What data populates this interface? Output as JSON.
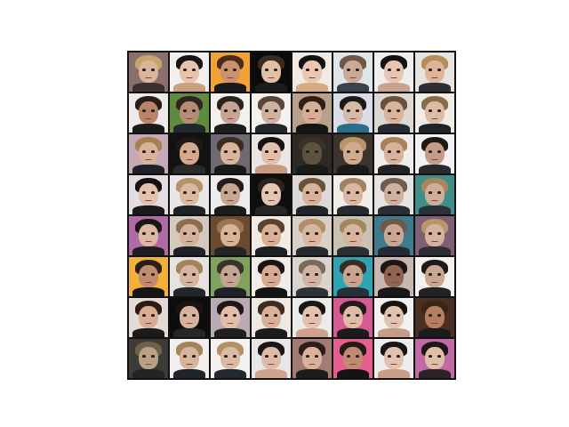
{
  "figure": {
    "rows": 8,
    "cols": 8,
    "tiles": [
      {
        "bg": "#8a6f6a",
        "hair": "#c7a46b",
        "skin": "#d9b59a",
        "cloth": "#3b2f2f"
      },
      {
        "bg": "#f2f0ee",
        "hair": "#1b1414",
        "skin": "#e7c3ab",
        "cloth": "#caa07f"
      },
      {
        "bg": "#f0a334",
        "hair": "#4a2c1e",
        "skin": "#c9926f",
        "cloth": "#1a1a1a"
      },
      {
        "bg": "#0b0b0b",
        "hair": "#3a2b1f",
        "skin": "#e0c1a8",
        "cloth": "#1c1c1c"
      },
      {
        "bg": "#f1e9e4",
        "hair": "#131010",
        "skin": "#e9c7b0",
        "cloth": "#d7a985"
      },
      {
        "bg": "#dfe6ea",
        "hair": "#6d5745",
        "skin": "#c9aa95",
        "cloth": "#39414a"
      },
      {
        "bg": "#eeeeee",
        "hair": "#151212",
        "skin": "#e6c6b2",
        "cloth": "#c8a28e"
      },
      {
        "bg": "#e7e3df",
        "hair": "#b68d58",
        "skin": "#ddb59b",
        "cloth": "#2e2e36"
      },
      {
        "bg": "#efeaea",
        "hair": "#2a1d17",
        "skin": "#b98468",
        "cloth": "#1b1b1b"
      },
      {
        "bg": "#5f8b3f",
        "hair": "#2f2520",
        "skin": "#b48d74",
        "cloth": "#22272e"
      },
      {
        "bg": "#f3f1ee",
        "hair": "#2b231e",
        "skin": "#c7a493",
        "cloth": "#1d1d1d"
      },
      {
        "bg": "#f4f2f0",
        "hair": "#5a4638",
        "skin": "#cdb1a1",
        "cloth": "#21262b"
      },
      {
        "bg": "#b9a08c",
        "hair": "#2e1f18",
        "skin": "#d6ae93",
        "cloth": "#151515"
      },
      {
        "bg": "#d9dde8",
        "hair": "#1e1a19",
        "skin": "#d6b9a6",
        "cloth": "#2a6f8a"
      },
      {
        "bg": "#dcd7d2",
        "hair": "#6b5137",
        "skin": "#d8b49c",
        "cloth": "#262b33"
      },
      {
        "bg": "#f0ede7",
        "hair": "#8a6b4c",
        "skin": "#dbbca5",
        "cloth": "#1f242b"
      },
      {
        "bg": "#c6a8b7",
        "hair": "#a6804f",
        "skin": "#d8b29a",
        "cloth": "#1d2128"
      },
      {
        "bg": "#121212",
        "hair": "#211915",
        "skin": "#d4a98d",
        "cloth": "#2a2a2a"
      },
      {
        "bg": "#6e6a74",
        "hair": "#3b2b22",
        "skin": "#d9b59d",
        "cloth": "#191919"
      },
      {
        "bg": "#e9e5e2",
        "hair": "#161212",
        "skin": "#e1c0ab",
        "cloth": "#c79a80"
      },
      {
        "bg": "#2c2a22",
        "hair": "#3a3325",
        "skin": "#5c5240",
        "cloth": "#1b1a16"
      },
      {
        "bg": "#3c352d",
        "hair": "#b89467",
        "skin": "#d0ab8f",
        "cloth": "#1a1a1a"
      },
      {
        "bg": "#f0ecea",
        "hair": "#a8835a",
        "skin": "#d7b39b",
        "cloth": "#222225"
      },
      {
        "bg": "#f3f1f1",
        "hair": "#1f1a18",
        "skin": "#c49d89",
        "cloth": "#2a2a2e"
      },
      {
        "bg": "#e1dde1",
        "hair": "#141112",
        "skin": "#e3c1ad",
        "cloth": "#1a1a1a"
      },
      {
        "bg": "#e9e7e5",
        "hair": "#b49466",
        "skin": "#dbb8a0",
        "cloth": "#1d2229"
      },
      {
        "bg": "#ececef",
        "hair": "#231c1a",
        "skin": "#c7a590",
        "cloth": "#1c1c1c"
      },
      {
        "bg": "#0e0e0e",
        "hair": "#2c221c",
        "skin": "#e3c6b2",
        "cloth": "#262626"
      },
      {
        "bg": "#dcd9d7",
        "hair": "#6b5138",
        "skin": "#d7b39a",
        "cloth": "#20252c"
      },
      {
        "bg": "#f1ede8",
        "hair": "#a3835f",
        "skin": "#d9b7a1",
        "cloth": "#252a30"
      },
      {
        "bg": "#e5e3e0",
        "hair": "#6f5c4e",
        "skin": "#ccb0a0",
        "cloth": "#2a2e34"
      },
      {
        "bg": "#3f8e88",
        "hair": "#a8865e",
        "skin": "#cfae99",
        "cloth": "#2b3139"
      },
      {
        "bg": "#b06aa6",
        "hair": "#1b1616",
        "skin": "#dcb8a4",
        "cloth": "#201e22"
      },
      {
        "bg": "#d4c9bf",
        "hair": "#8b6e50",
        "skin": "#d3b19b",
        "cloth": "#1f2329"
      },
      {
        "bg": "#6a4b2f",
        "hair": "#9b7651",
        "skin": "#d8b39a",
        "cloth": "#242424"
      },
      {
        "bg": "#f1ebe3",
        "hair": "#5b4330",
        "skin": "#d7b096",
        "cloth": "#1d2127"
      },
      {
        "bg": "#d8cfc6",
        "hair": "#b08f68",
        "skin": "#d7b7a0",
        "cloth": "#272b30"
      },
      {
        "bg": "#c9c1b4",
        "hair": "#a5875e",
        "skin": "#d5b59e",
        "cloth": "#2a2f35"
      },
      {
        "bg": "#3f7b8f",
        "hair": "#6c5a4a",
        "skin": "#c8a894",
        "cloth": "#232a33"
      },
      {
        "bg": "#7e5f73",
        "hair": "#b8966a",
        "skin": "#d4b49d",
        "cloth": "#2b2f35"
      },
      {
        "bg": "#f4b13a",
        "hair": "#2a1e17",
        "skin": "#c08b6f",
        "cloth": "#151515"
      },
      {
        "bg": "#e6e2df",
        "hair": "#a4845d",
        "skin": "#d6b49d",
        "cloth": "#22272e"
      },
      {
        "bg": "#7fa25d",
        "hair": "#3b342b",
        "skin": "#c5a591",
        "cloth": "#1e2227"
      },
      {
        "bg": "#f0ece9",
        "hair": "#1a1414",
        "skin": "#d4ab92",
        "cloth": "#141414"
      },
      {
        "bg": "#d9d4cf",
        "hair": "#7d6a58",
        "skin": "#cfb3a3",
        "cloth": "#2e333a"
      },
      {
        "bg": "#2ea3b2",
        "hair": "#3a2d25",
        "skin": "#caa58e",
        "cloth": "#263039"
      },
      {
        "bg": "#c7b7b0",
        "hair": "#1e1613",
        "skin": "#8f6551",
        "cloth": "#1a1a1a"
      },
      {
        "bg": "#f3f1ef",
        "hair": "#1e1917",
        "skin": "#c9a593",
        "cloth": "#202226"
      },
      {
        "bg": "#e3dad6",
        "hair": "#2b1c17",
        "skin": "#d7ad94",
        "cloth": "#1b1b1b"
      },
      {
        "bg": "#0d0d0d",
        "hair": "#1a1414",
        "skin": "#d7b29c",
        "cloth": "#262626"
      },
      {
        "bg": "#b9aab6",
        "hair": "#1e1818",
        "skin": "#e1bea8",
        "cloth": "#1f1f1f"
      },
      {
        "bg": "#efe9e4",
        "hair": "#3f2b1f",
        "skin": "#d9b098",
        "cloth": "#1c1c1c"
      },
      {
        "bg": "#ecebec",
        "hair": "#1b1616",
        "skin": "#e2c2ad",
        "cloth": "#cfa18a"
      },
      {
        "bg": "#d65b92",
        "hair": "#231b19",
        "skin": "#dfbba6",
        "cloth": "#1c1c1c"
      },
      {
        "bg": "#f2f1f0",
        "hair": "#171313",
        "skin": "#e2c3b0",
        "cloth": "#c59c86"
      },
      {
        "bg": "#4a2f22",
        "hair": "#3a2619",
        "skin": "#b57e61",
        "cloth": "#1b1b1b"
      },
      {
        "bg": "#3b3b38",
        "hair": "#6f6147",
        "skin": "#b8a184",
        "cloth": "#242424"
      },
      {
        "bg": "#f2efec",
        "hair": "#a4845b",
        "skin": "#d7b59d",
        "cloth": "#20252b"
      },
      {
        "bg": "#f3f2f0",
        "hair": "#b39065",
        "skin": "#dcbba4",
        "cloth": "#242930"
      },
      {
        "bg": "#e9e6e8",
        "hair": "#1b1617",
        "skin": "#ddbca7",
        "cloth": "#d0a48a"
      },
      {
        "bg": "#a27c72",
        "hair": "#2c1e19",
        "skin": "#d8b29c",
        "cloth": "#1c1c1c"
      },
      {
        "bg": "#e45f8f",
        "hair": "#241a16",
        "skin": "#c28a70",
        "cloth": "#141414"
      },
      {
        "bg": "#efedee",
        "hair": "#191515",
        "skin": "#e2c2ae",
        "cloth": "#c99f88"
      },
      {
        "bg": "#c26aa3",
        "hair": "#1e1818",
        "skin": "#dfbea9",
        "cloth": "#2a2428"
      }
    ]
  }
}
